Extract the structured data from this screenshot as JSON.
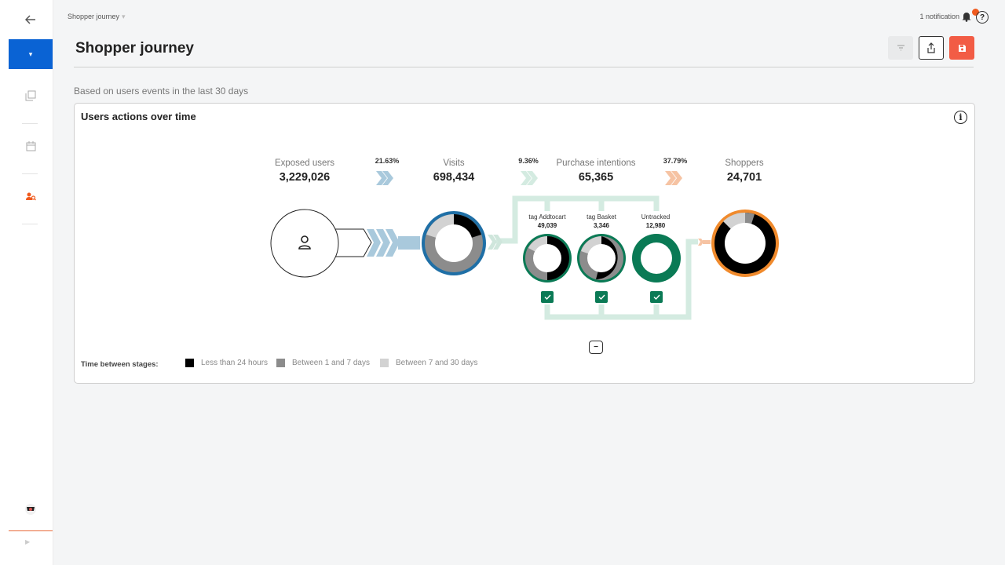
{
  "breadcrumb": {
    "label": "Shopper journey"
  },
  "header": {
    "notifications": "1 notification"
  },
  "page": {
    "title": "Shopper journey",
    "subtitle": "Based on users events in the last 30 days"
  },
  "card": {
    "title": "Users actions over time",
    "stages": [
      {
        "label": "Exposed users",
        "value": "3,229,026"
      },
      {
        "label": "Visits",
        "value": "698,434"
      },
      {
        "label": "Purchase intentions",
        "value": "65,365"
      },
      {
        "label": "Shoppers",
        "value": "24,701"
      }
    ],
    "rates": [
      "21.63%",
      "9.36%",
      "37.79%"
    ],
    "intentions": [
      {
        "label": "tag Addtocart",
        "value": "49,039"
      },
      {
        "label": "tag Basket",
        "value": "3,346"
      },
      {
        "label": "Untracked",
        "value": "12,980"
      }
    ],
    "legend": {
      "title": "Time between stages:",
      "items": [
        {
          "label": "Less than 24 hours",
          "color": "#000000"
        },
        {
          "label": "Between 1 and 7 days",
          "color": "#8c8c8c"
        },
        {
          "label": "Between 7 and 30 days",
          "color": "#d2d2d2"
        }
      ]
    }
  },
  "colors": {
    "nav_active": "#0a63d4",
    "save_button": "#f25c45",
    "visits_ring": "#1f6fa6",
    "intentions_ring": "#0a7a55",
    "shoppers_ring": "#f08a2c",
    "intentions_connector": "#d4ebe1",
    "visits_chevrons": "#a9c9dc",
    "shoppers_chevrons": "#f6c3a3"
  },
  "icons": {
    "nav": [
      "back-arrow-icon",
      "dropdown-caret-icon",
      "copy-icon",
      "calendar-icon",
      "users-search-icon",
      "avatar-icon",
      "expand-icon"
    ],
    "toolbar": [
      "filter-icon",
      "share-icon",
      "save-icon"
    ],
    "header": [
      "bell-icon",
      "help-icon"
    ],
    "card": [
      "info-icon",
      "user-icon",
      "check-icon",
      "collapse-icon"
    ]
  }
}
